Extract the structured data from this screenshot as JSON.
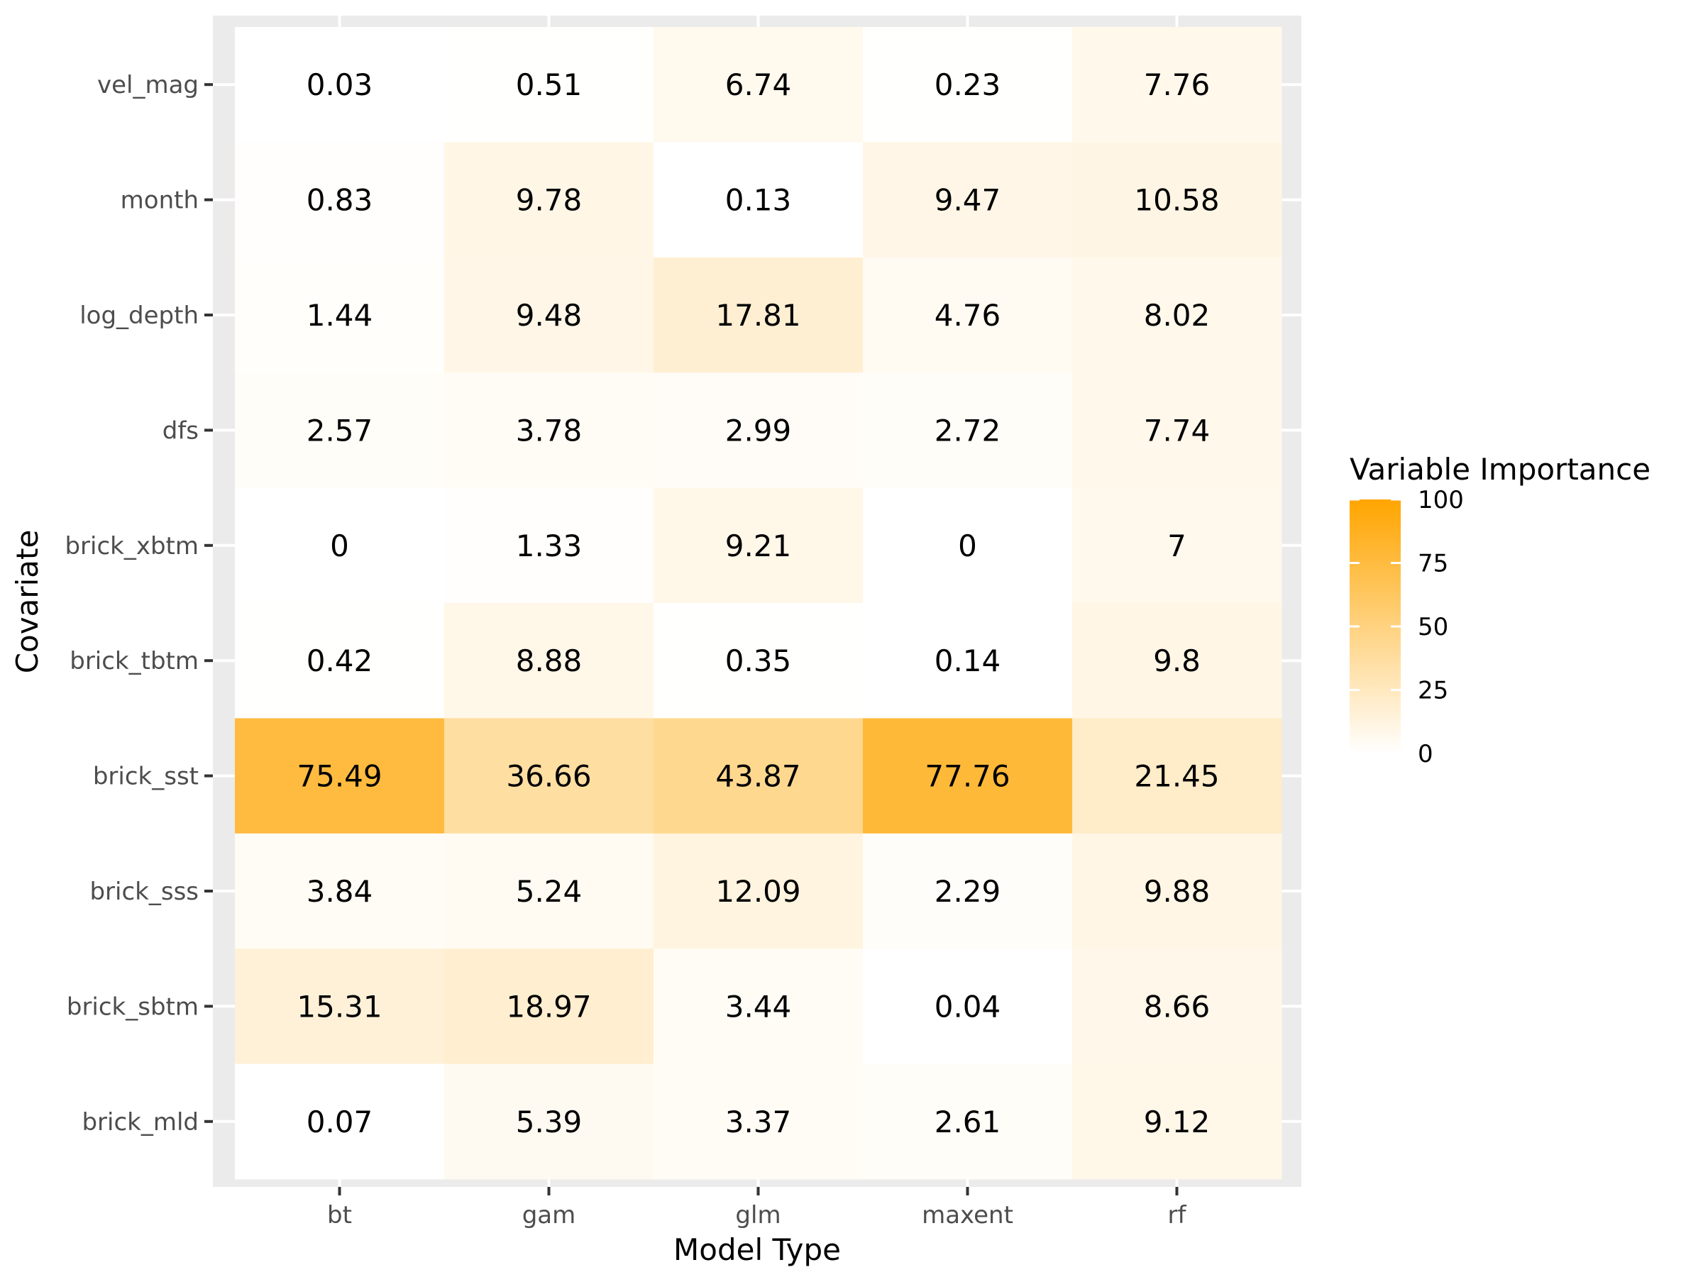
{
  "chart_data": {
    "type": "heatmap",
    "title": "",
    "xlabel": "Model Type",
    "ylabel": "Covariate",
    "x_categories": [
      "bt",
      "gam",
      "glm",
      "maxent",
      "rf"
    ],
    "y_categories": [
      "vel_mag",
      "month",
      "log_depth",
      "dfs",
      "brick_xbtm",
      "brick_tbtm",
      "brick_sst",
      "brick_sss",
      "brick_sbtm",
      "brick_mld"
    ],
    "values": [
      [
        0.03,
        0.51,
        6.74,
        0.23,
        7.76
      ],
      [
        0.83,
        9.78,
        0.13,
        9.47,
        10.58
      ],
      [
        1.44,
        9.48,
        17.81,
        4.76,
        8.02
      ],
      [
        2.57,
        3.78,
        2.99,
        2.72,
        7.74
      ],
      [
        0,
        1.33,
        9.21,
        0,
        7
      ],
      [
        0.42,
        8.88,
        0.35,
        0.14,
        9.8
      ],
      [
        75.49,
        36.66,
        43.87,
        77.76,
        21.45
      ],
      [
        3.84,
        5.24,
        12.09,
        2.29,
        9.88
      ],
      [
        15.31,
        18.97,
        3.44,
        0.04,
        8.66
      ],
      [
        0.07,
        5.39,
        3.37,
        2.61,
        9.12
      ]
    ],
    "value_labels": [
      [
        "0.03",
        "0.51",
        "6.74",
        "0.23",
        "7.76"
      ],
      [
        "0.83",
        "9.78",
        "0.13",
        "9.47",
        "10.58"
      ],
      [
        "1.44",
        "9.48",
        "17.81",
        "4.76",
        "8.02"
      ],
      [
        "2.57",
        "3.78",
        "2.99",
        "2.72",
        "7.74"
      ],
      [
        "0",
        "1.33",
        "9.21",
        "0",
        "7"
      ],
      [
        "0.42",
        "8.88",
        "0.35",
        "0.14",
        "9.8"
      ],
      [
        "75.49",
        "36.66",
        "43.87",
        "77.76",
        "21.45"
      ],
      [
        "3.84",
        "5.24",
        "12.09",
        "2.29",
        "9.88"
      ],
      [
        "15.31",
        "18.97",
        "3.44",
        "0.04",
        "8.66"
      ],
      [
        "0.07",
        "5.39",
        "3.37",
        "2.61",
        "9.12"
      ]
    ],
    "color_scale": {
      "low_color": "#ffffff",
      "high_color": "#ffa500",
      "limits": [
        0,
        100
      ]
    },
    "legend": {
      "title": "Variable Importance",
      "ticks": [
        0,
        25,
        50,
        75,
        100
      ],
      "placement": "right"
    },
    "panel_background": "#ebebeb",
    "grid": true
  }
}
